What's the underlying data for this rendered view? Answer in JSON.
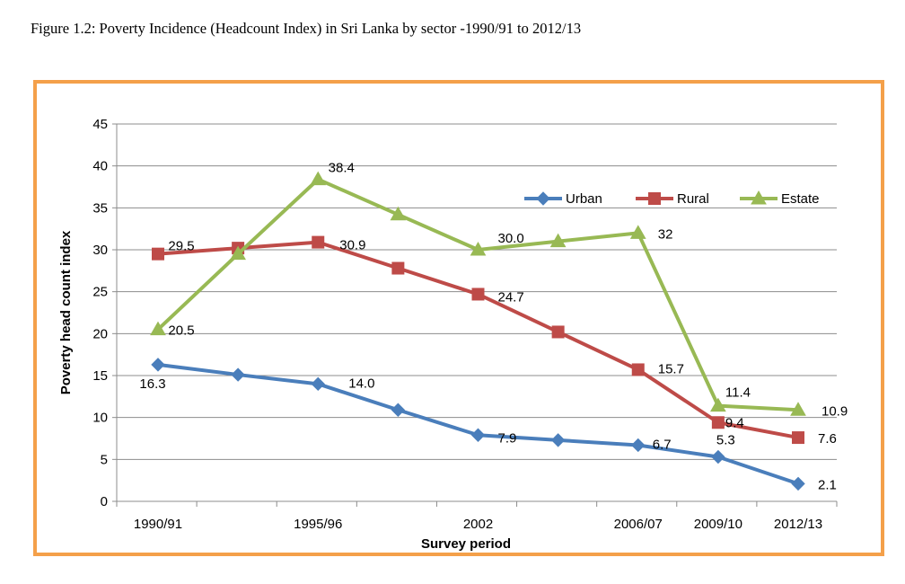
{
  "figure_title": "Figure 1.2: Poverty Incidence (Headcount Index) in Sri Lanka by sector -1990/91 to 2012/13",
  "chart_data": {
    "type": "line",
    "title": "",
    "xlabel": "Survey period",
    "ylabel": "Poverty head count index",
    "ylim": [
      0,
      45
    ],
    "yticks": [
      0,
      5,
      10,
      15,
      20,
      25,
      30,
      35,
      40,
      45
    ],
    "grid": true,
    "legend_position": "top-right",
    "x_tick_labels": [
      "1990/91",
      "1995/96",
      "2002",
      "2006/07",
      "2009/10",
      "2012/13"
    ],
    "x_tick_label_indices": [
      0,
      2,
      4,
      6,
      7,
      8
    ],
    "series": [
      {
        "name": "Urban",
        "color": "#4a7ebb",
        "marker": "diamond",
        "values": [
          16.3,
          15.1,
          14.0,
          10.9,
          7.9,
          7.3,
          6.7,
          5.3,
          2.1
        ],
        "labels": [
          "16.3",
          "",
          "14.0",
          "",
          "7.9",
          "",
          "6.7",
          "5.3",
          "2.1"
        ]
      },
      {
        "name": "Rural",
        "color": "#be4b48",
        "marker": "square",
        "values": [
          29.5,
          30.2,
          30.9,
          27.8,
          24.7,
          20.2,
          15.7,
          9.4,
          7.6
        ],
        "labels": [
          "29.5",
          "",
          "30.9",
          "",
          "24.7",
          "",
          "15.7",
          "9.4",
          "7.6"
        ]
      },
      {
        "name": "Estate",
        "color": "#98b954",
        "marker": "triangle",
        "values": [
          20.5,
          29.5,
          38.4,
          34.2,
          30.0,
          31.0,
          32.0,
          11.4,
          10.9
        ],
        "labels": [
          "20.5",
          "",
          "38.4",
          "",
          "30.0",
          "",
          "32",
          "11.4",
          "10.9"
        ]
      }
    ]
  }
}
